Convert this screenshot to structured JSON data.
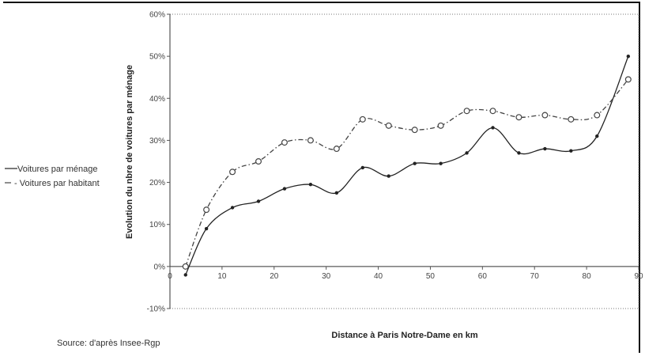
{
  "chart_data": {
    "type": "line",
    "title": "",
    "xlabel": "Distance à Paris Notre-Dame en km",
    "ylabel": "Evolution du nbre de voitures par ménage",
    "xlim": [
      0,
      90
    ],
    "ylim": [
      -10,
      60
    ],
    "x_ticks": [
      "0",
      "10",
      "20",
      "30",
      "40",
      "50",
      "60",
      "70",
      "80",
      "90"
    ],
    "y_ticks": [
      "-10%",
      "0%",
      "10%",
      "20%",
      "30%",
      "40%",
      "50%",
      "60%"
    ],
    "grid": false,
    "legend_position": "left",
    "series": [
      {
        "name": "Voitures par ménage",
        "line": "solid",
        "marker": "filled-dot",
        "color": "#222222",
        "points": [
          [
            3,
            -2
          ],
          [
            7,
            9
          ],
          [
            12,
            14
          ],
          [
            17,
            15.5
          ],
          [
            22,
            18.5
          ],
          [
            27,
            19.5
          ],
          [
            32,
            17.5
          ],
          [
            37,
            23.5
          ],
          [
            42,
            21.5
          ],
          [
            47,
            24.5
          ],
          [
            52,
            24.5
          ],
          [
            57,
            27
          ],
          [
            62,
            33
          ],
          [
            67,
            27
          ],
          [
            72,
            28
          ],
          [
            77,
            27.5
          ],
          [
            82,
            31
          ],
          [
            88,
            50
          ]
        ]
      },
      {
        "name": "Voitures par habitant",
        "line": "dash-dot",
        "marker": "open-circle",
        "color": "#444444",
        "points": [
          [
            3,
            0
          ],
          [
            7,
            13.5
          ],
          [
            12,
            22.5
          ],
          [
            17,
            25
          ],
          [
            22,
            29.5
          ],
          [
            27,
            30
          ],
          [
            32,
            28
          ],
          [
            37,
            35
          ],
          [
            42,
            33.5
          ],
          [
            47,
            32.5
          ],
          [
            52,
            33.5
          ],
          [
            57,
            37
          ],
          [
            62,
            37
          ],
          [
            67,
            35.5
          ],
          [
            72,
            36
          ],
          [
            77,
            35
          ],
          [
            82,
            36
          ],
          [
            88,
            44.5
          ]
        ]
      }
    ],
    "legend_entries": [
      "Voitures par ménage",
      "- Voitures par habitant"
    ]
  },
  "source": "Source: d'après Insee-Rgp"
}
